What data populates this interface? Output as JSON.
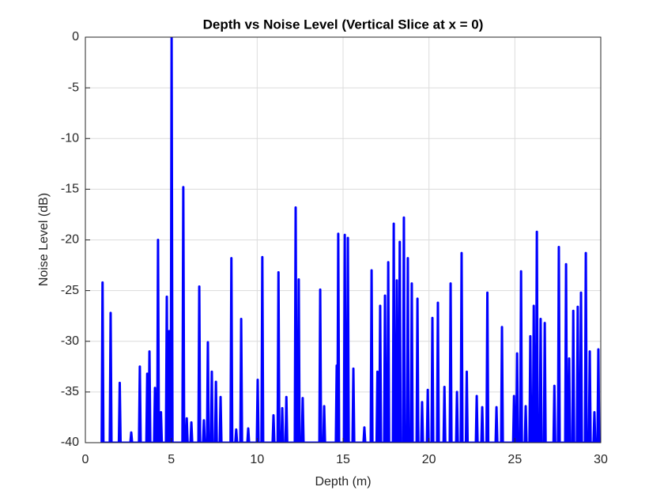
{
  "chart_data": {
    "type": "line",
    "title": "Depth vs Noise Level (Vertical Slice at x = 0)",
    "x_label": "Depth (m)",
    "y_label": "Noise Level (dB)",
    "xlim": [
      0,
      30
    ],
    "xticks": [
      0,
      5,
      10,
      15,
      20,
      25,
      30
    ],
    "ylim": [
      -40,
      0
    ],
    "yticks": [
      -40,
      -35,
      -30,
      -25,
      -20,
      -15,
      -10,
      -5,
      0
    ],
    "grid": true,
    "x": [
      0.95,
      1.0,
      1.05,
      1.42,
      1.47,
      1.52,
      1.95,
      2.0,
      2.05,
      2.62,
      2.67,
      2.72,
      3.12,
      3.17,
      3.22,
      3.55,
      3.6,
      3.65,
      3.68,
      3.73,
      3.78,
      4.0,
      4.05,
      4.1,
      4.18,
      4.23,
      4.28,
      4.35,
      4.4,
      4.45,
      4.69,
      4.74,
      4.79,
      4.83,
      4.88,
      4.93,
      4.97,
      5.02,
      5.07,
      5.65,
      5.7,
      5.75,
      5.85,
      5.9,
      5.95,
      6.12,
      6.17,
      6.22,
      6.58,
      6.63,
      6.68,
      6.85,
      6.9,
      6.95,
      7.08,
      7.13,
      7.18,
      7.31,
      7.36,
      7.41,
      7.55,
      7.6,
      7.65,
      7.82,
      7.87,
      7.92,
      8.45,
      8.5,
      8.55,
      8.73,
      8.78,
      8.83,
      9.02,
      9.07,
      9.12,
      9.43,
      9.48,
      9.53,
      9.98,
      10.03,
      10.08,
      10.25,
      10.3,
      10.35,
      10.9,
      10.95,
      11.0,
      11.19,
      11.24,
      11.29,
      11.41,
      11.46,
      11.51,
      11.65,
      11.7,
      11.75,
      12.19,
      12.24,
      12.29,
      12.37,
      12.42,
      12.47,
      12.6,
      12.65,
      12.7,
      13.62,
      13.67,
      13.72,
      13.85,
      13.9,
      13.95,
      14.58,
      14.63,
      14.68,
      14.67,
      14.72,
      14.77,
      15.05,
      15.1,
      15.15,
      15.23,
      15.28,
      15.33,
      15.55,
      15.6,
      15.65,
      16.19,
      16.24,
      16.29,
      16.61,
      16.66,
      16.71,
      16.95,
      17.0,
      17.05,
      17.11,
      17.16,
      17.21,
      17.39,
      17.44,
      17.49,
      17.58,
      17.63,
      17.68,
      17.9,
      17.95,
      18.0,
      18.08,
      18.13,
      18.18,
      18.25,
      18.3,
      18.35,
      18.49,
      18.54,
      18.59,
      18.72,
      18.77,
      18.82,
      18.95,
      19.0,
      19.05,
      19.28,
      19.33,
      19.38,
      19.55,
      19.6,
      19.65,
      19.88,
      19.93,
      19.98,
      20.15,
      20.2,
      20.25,
      20.47,
      20.52,
      20.57,
      20.85,
      20.9,
      20.95,
      21.21,
      21.26,
      21.31,
      21.58,
      21.63,
      21.68,
      21.85,
      21.9,
      21.95,
      22.15,
      22.2,
      22.25,
      22.73,
      22.78,
      22.83,
      23.05,
      23.1,
      23.15,
      23.35,
      23.4,
      23.45,
      23.88,
      23.93,
      23.98,
      24.2,
      24.25,
      24.3,
      24.9,
      24.95,
      25.0,
      25.08,
      25.13,
      25.18,
      25.31,
      25.36,
      25.41,
      25.58,
      25.63,
      25.68,
      25.85,
      25.9,
      25.95,
      26.05,
      26.1,
      26.15,
      26.23,
      26.28,
      26.33,
      26.45,
      26.5,
      26.55,
      26.69,
      26.74,
      26.79,
      27.25,
      27.3,
      27.35,
      27.51,
      27.56,
      27.61,
      27.93,
      27.98,
      28.03,
      28.11,
      28.16,
      28.21,
      28.35,
      28.4,
      28.45,
      28.61,
      28.66,
      28.71,
      28.8,
      28.85,
      28.9,
      29.08,
      29.13,
      29.18,
      29.31,
      29.36,
      29.41,
      29.58,
      29.63,
      29.68,
      29.81,
      29.86,
      29.91
    ],
    "series": [
      {
        "color": "#0000ff",
        "values": [
          -40,
          -24.2,
          -40,
          -40,
          -27.2,
          -40,
          -40,
          -34.1,
          -40,
          -40,
          -39,
          -40,
          -40,
          -32.5,
          -40,
          -40,
          -33.2,
          -40,
          -40,
          -31,
          -40,
          -40,
          -34.6,
          -40,
          -40,
          -20,
          -40,
          -40,
          -37,
          -40,
          -40,
          -25.6,
          -40,
          -40,
          -29,
          -40,
          -40,
          0,
          -40,
          -40,
          -14.8,
          -40,
          -40,
          -37.6,
          -40,
          -40,
          -38,
          -40,
          -40,
          -24.6,
          -40,
          -40,
          -37.8,
          -40,
          -40,
          -30.1,
          -40,
          -40,
          -33,
          -40,
          -40,
          -34,
          -40,
          -40,
          -35.5,
          -40,
          -40,
          -21.8,
          -40,
          -40,
          -38.7,
          -40,
          -40,
          -27.8,
          -40,
          -40,
          -38.6,
          -40,
          -40,
          -33.8,
          -40,
          -40,
          -21.7,
          -40,
          -40,
          -37.3,
          -40,
          -40,
          -23.2,
          -40,
          -40,
          -36.6,
          -40,
          -40,
          -35.5,
          -40,
          -40,
          -16.8,
          -40,
          -40,
          -23.9,
          -40,
          -40,
          -35.6,
          -40,
          -40,
          -24.9,
          -40,
          -40,
          -36.4,
          -40,
          -40,
          -32.4,
          -40,
          -40,
          -19.4,
          -40,
          -40,
          -19.5,
          -40,
          -40,
          -19.8,
          -40,
          -40,
          -32.7,
          -40,
          -40,
          -38.5,
          -40,
          -40,
          -23,
          -40,
          -40,
          -33,
          -40,
          -40,
          -26.5,
          -40,
          -40,
          -25.5,
          -40,
          -40,
          -22.2,
          -40,
          -40,
          -18.4,
          -40,
          -40,
          -24,
          -40,
          -40,
          -20.2,
          -40,
          -40,
          -17.8,
          -40,
          -40,
          -21.8,
          -40,
          -40,
          -24.3,
          -40,
          -40,
          -25.8,
          -40,
          -40,
          -36,
          -40,
          -40,
          -34.8,
          -40,
          -40,
          -27.7,
          -40,
          -40,
          -26.2,
          -40,
          -40,
          -34.5,
          -40,
          -40,
          -24.3,
          -40,
          -40,
          -35,
          -40,
          -40,
          -21.3,
          -40,
          -40,
          -33,
          -40,
          -40,
          -35.4,
          -40,
          -40,
          -36.5,
          -40,
          -40,
          -25.2,
          -40,
          -40,
          -36.5,
          -40,
          -40,
          -28.6,
          -40,
          -40,
          -35.4,
          -40,
          -40,
          -31.2,
          -40,
          -40,
          -23.1,
          -40,
          -40,
          -36.4,
          -40,
          -40,
          -29.5,
          -40,
          -40,
          -26.5,
          -40,
          -40,
          -19.2,
          -40,
          -40,
          -27.8,
          -40,
          -40,
          -28.2,
          -40,
          -40,
          -34.4,
          -40,
          -40,
          -20.7,
          -40,
          -40,
          -22.4,
          -40,
          -40,
          -31.7,
          -40,
          -40,
          -27,
          -40,
          -40,
          -26.6,
          -40,
          -40,
          -25.2,
          -40,
          -40,
          -21.3,
          -40,
          -40,
          -31,
          -40,
          -40,
          -37,
          -40,
          -40,
          -30.8,
          -40
        ]
      }
    ]
  }
}
